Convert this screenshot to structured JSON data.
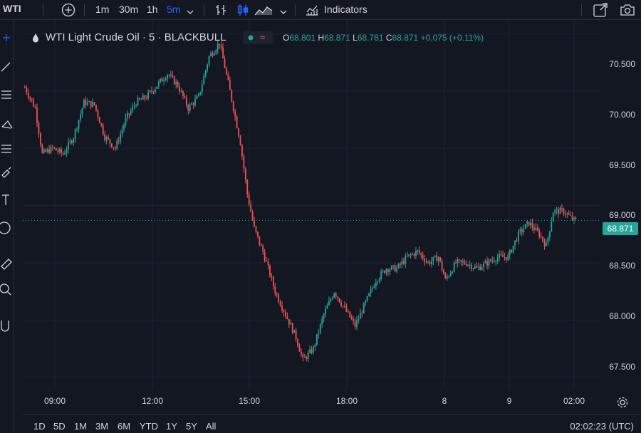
{
  "toolbar": {
    "symbol": "WTI",
    "timeframes": [
      "1m",
      "30m",
      "1h",
      "5m"
    ],
    "active_timeframe": "5m",
    "indicators_label": "Indicators"
  },
  "legend": {
    "title": "WTI Light Crude Oil · 5 · BLACKBULL",
    "badge": "≈",
    "o_label": "O",
    "o_value": "68.801",
    "h_label": "H",
    "h_value": "68.871",
    "l_label": "L",
    "l_value": "68.781",
    "c_label": "C",
    "c_value": "68.871",
    "change": "+0.075 (+0.11%)"
  },
  "price_axis": [
    "70.500",
    "70.000",
    "69.500",
    "69.000",
    "68.500",
    "68.000",
    "67.500"
  ],
  "current_price": "68.871",
  "time_axis": [
    "09:00",
    "12:00",
    "15:00",
    "18:00",
    "8",
    "9",
    "02:00"
  ],
  "ranges": [
    "1D",
    "5D",
    "1M",
    "3M",
    "6M",
    "YTD",
    "1Y",
    "5Y",
    "All"
  ],
  "clock": "02:02:23 (UTC)",
  "colors": {
    "up": "#26a69a",
    "down": "#ef5350",
    "background": "#131722",
    "accent": "#2962ff"
  },
  "chart_data": {
    "type": "candlestick",
    "ylim": [
      67.4,
      70.62
    ],
    "x_ticks": [
      "09:00",
      "12:00",
      "15:00",
      "18:00",
      "8",
      "9",
      "02:00"
    ],
    "y_ticks": [
      70.5,
      70.0,
      69.5,
      69.0,
      68.5,
      68.0,
      67.5
    ],
    "last_price": 68.871,
    "trend": [
      [
        0,
        70.03
      ],
      [
        6,
        69.85
      ],
      [
        10,
        69.45
      ],
      [
        16,
        69.5
      ],
      [
        22,
        69.45
      ],
      [
        28,
        69.6
      ],
      [
        34,
        69.9
      ],
      [
        40,
        69.88
      ],
      [
        46,
        69.6
      ],
      [
        52,
        69.5
      ],
      [
        58,
        69.75
      ],
      [
        64,
        69.9
      ],
      [
        70,
        69.95
      ],
      [
        76,
        70.05
      ],
      [
        82,
        70.15
      ],
      [
        88,
        70.05
      ],
      [
        94,
        69.85
      ],
      [
        100,
        69.95
      ],
      [
        106,
        70.3
      ],
      [
        112,
        70.42
      ],
      [
        118,
        70.0
      ],
      [
        124,
        69.55
      ],
      [
        128,
        69.1
      ],
      [
        132,
        68.8
      ],
      [
        138,
        68.55
      ],
      [
        144,
        68.25
      ],
      [
        150,
        68.05
      ],
      [
        156,
        67.85
      ],
      [
        160,
        67.65
      ],
      [
        166,
        67.75
      ],
      [
        172,
        68.05
      ],
      [
        178,
        68.25
      ],
      [
        184,
        68.1
      ],
      [
        190,
        67.95
      ],
      [
        196,
        68.15
      ],
      [
        202,
        68.35
      ],
      [
        208,
        68.45
      ],
      [
        214,
        68.45
      ],
      [
        220,
        68.55
      ],
      [
        226,
        68.6
      ],
      [
        232,
        68.5
      ],
      [
        238,
        68.55
      ],
      [
        242,
        68.35
      ],
      [
        248,
        68.5
      ],
      [
        254,
        68.5
      ],
      [
        260,
        68.45
      ],
      [
        266,
        68.5
      ],
      [
        272,
        68.55
      ],
      [
        278,
        68.55
      ],
      [
        284,
        68.75
      ],
      [
        290,
        68.85
      ],
      [
        296,
        68.75
      ],
      [
        300,
        68.65
      ],
      [
        304,
        68.95
      ],
      [
        310,
        68.95
      ],
      [
        316,
        68.87
      ]
    ]
  }
}
